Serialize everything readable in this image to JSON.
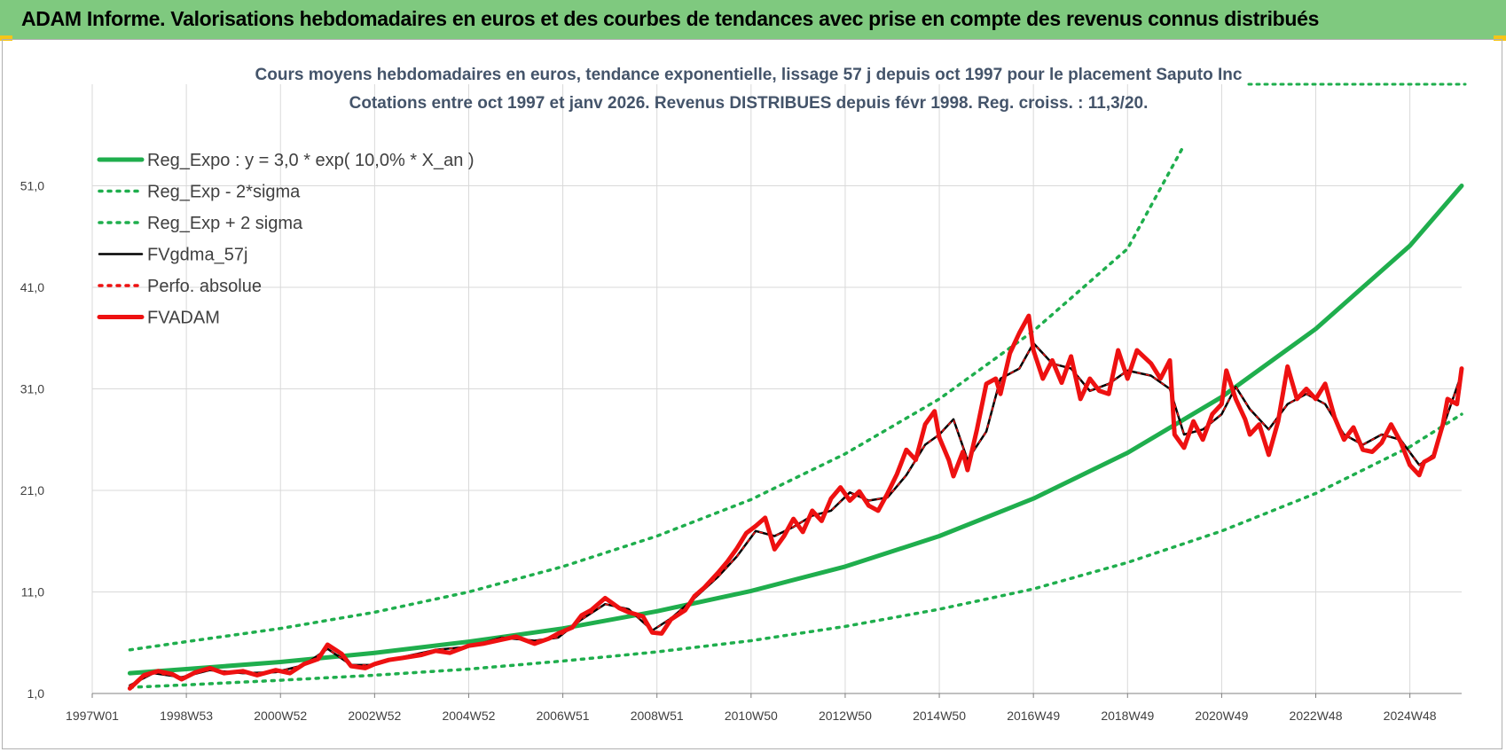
{
  "header": {
    "title": "ADAM Informe. Valorisations hebdomadaires en euros et des courbes de tendances avec prise en compte des revenus connus distribués"
  },
  "colors": {
    "header_bg": "#7fc97f",
    "green": "#1fae4d",
    "red": "#ee1111",
    "black": "#000000",
    "grid": "#d9d9d9"
  },
  "chart_data": {
    "type": "line",
    "title": "Cours moyens hebdomadaires en euros, tendance exponentielle, lissage 57 j depuis oct 1997 pour le placement Saputo Inc",
    "subtitle": "Cotations entre oct 1997 et janv 2026. Revenus DISTRIBUES depuis févr 1998. Reg. croiss. : 11,3/20.",
    "xlabel": "",
    "ylabel": "",
    "ylim": [
      1,
      61
    ],
    "xlim": [
      1997.0,
      2026.1
    ],
    "grid": true,
    "legend_position": "top-left",
    "y_ticks": [
      {
        "value": 1,
        "label": "1,0"
      },
      {
        "value": 11,
        "label": "11,0"
      },
      {
        "value": 21,
        "label": "21,0"
      },
      {
        "value": 31,
        "label": "31,0"
      },
      {
        "value": 41,
        "label": "41,0"
      },
      {
        "value": 51,
        "label": "51,0"
      }
    ],
    "x_ticks": [
      {
        "value": 1997.0,
        "label": "1997W01"
      },
      {
        "value": 1999.0,
        "label": "1998W53"
      },
      {
        "value": 2001.0,
        "label": "2000W52"
      },
      {
        "value": 2003.0,
        "label": "2002W52"
      },
      {
        "value": 2005.0,
        "label": "2004W52"
      },
      {
        "value": 2007.0,
        "label": "2006W51"
      },
      {
        "value": 2009.0,
        "label": "2008W51"
      },
      {
        "value": 2011.0,
        "label": "2010W50"
      },
      {
        "value": 2013.0,
        "label": "2012W50"
      },
      {
        "value": 2015.0,
        "label": "2014W50"
      },
      {
        "value": 2017.0,
        "label": "2016W49"
      },
      {
        "value": 2019.0,
        "label": "2018W49"
      },
      {
        "value": 2021.0,
        "label": "2020W49"
      },
      {
        "value": 2023.0,
        "label": "2022W48"
      },
      {
        "value": 2025.0,
        "label": "2024W48"
      }
    ],
    "series": [
      {
        "name": "Reg_Expo : y = 3,0 * exp( 10,0% *  X_an )",
        "style": "solid-thick",
        "color": "#1fae4d",
        "x": [
          1997.8,
          1999.0,
          2001.0,
          2003.0,
          2005.0,
          2007.0,
          2009.0,
          2011.0,
          2013.0,
          2015.0,
          2017.0,
          2019.0,
          2021.0,
          2023.0,
          2025.0,
          2026.1
        ],
        "values": [
          3.0,
          3.4,
          4.1,
          5.0,
          6.1,
          7.4,
          9.1,
          11.1,
          13.5,
          16.5,
          20.2,
          24.7,
          30.2,
          36.9,
          45.1,
          51.0
        ]
      },
      {
        "name": "Reg_Exp - 2*sigma",
        "style": "dotted",
        "color": "#1fae4d",
        "x": [
          1997.8,
          1999.0,
          2001.0,
          2003.0,
          2005.0,
          2007.0,
          2009.0,
          2011.0,
          2013.0,
          2015.0,
          2017.0,
          2019.0,
          2021.0,
          2023.0,
          2025.0,
          2026.1
        ],
        "values": [
          1.6,
          1.85,
          2.3,
          2.8,
          3.4,
          4.2,
          5.1,
          6.2,
          7.6,
          9.3,
          11.3,
          13.9,
          17.0,
          20.7,
          25.3,
          28.5
        ]
      },
      {
        "name": "Reg_Exp + 2 sigma",
        "style": "dotted",
        "color": "#1fae4d",
        "x": [
          1997.8,
          1999.0,
          2001.0,
          2003.0,
          2005.0,
          2007.0,
          2009.0,
          2011.0,
          2013.0,
          2015.0,
          2017.0,
          2019.0,
          2020.2
        ],
        "values": [
          5.3,
          6.1,
          7.4,
          9.0,
          11.0,
          13.5,
          16.5,
          20.1,
          24.6,
          30.0,
          36.7,
          44.8,
          55.0
        ]
      },
      {
        "name": "FVgdma_57j",
        "style": "solid",
        "color": "#000000",
        "x": [
          1997.8,
          1998.3,
          1998.9,
          1999.5,
          2000.2,
          2000.9,
          2001.5,
          2002.0,
          2002.5,
          2003.0,
          2003.6,
          2004.3,
          2005.0,
          2005.7,
          2006.4,
          2006.9,
          2007.4,
          2007.9,
          2008.4,
          2008.9,
          2009.3,
          2009.8,
          2010.3,
          2010.7,
          2011.1,
          2011.5,
          2011.9,
          2012.3,
          2012.7,
          2013.1,
          2013.5,
          2013.9,
          2014.3,
          2014.7,
          2015.0,
          2015.3,
          2015.6,
          2016.0,
          2016.3,
          2016.7,
          2017.0,
          2017.4,
          2017.8,
          2018.2,
          2018.6,
          2019.0,
          2019.5,
          2019.9,
          2020.2,
          2020.6,
          2021.0,
          2021.3,
          2021.6,
          2022.0,
          2022.4,
          2022.8,
          2023.2,
          2023.6,
          2024.0,
          2024.4,
          2024.8,
          2025.2,
          2025.5,
          2025.8,
          2026.1
        ],
        "values": [
          1.8,
          3.0,
          2.6,
          3.3,
          3.0,
          3.1,
          3.8,
          5.4,
          3.8,
          3.8,
          4.6,
          5.3,
          5.6,
          6.5,
          6.2,
          6.5,
          8.3,
          9.8,
          9.3,
          7.2,
          8.4,
          10.4,
          12.5,
          14.5,
          17.0,
          16.5,
          17.4,
          18.5,
          19.0,
          20.8,
          20.0,
          20.3,
          22.5,
          25.5,
          26.5,
          28.0,
          24.0,
          26.8,
          32.0,
          33.0,
          35.5,
          33.5,
          33.0,
          30.8,
          31.5,
          32.8,
          32.3,
          31.0,
          26.5,
          27.0,
          28.5,
          31.2,
          29.0,
          27.0,
          29.5,
          30.5,
          29.5,
          26.5,
          25.5,
          26.5,
          26.0,
          23.5,
          24.5,
          28.5,
          32.5
        ]
      },
      {
        "name": "Perfo. absolue",
        "style": "dotted",
        "color": "#ee1111",
        "x": [
          1997.8,
          1998.3,
          1998.9,
          1999.5,
          2000.2,
          2000.9,
          2001.5,
          2002.0,
          2002.5,
          2003.0,
          2003.6,
          2004.3,
          2005.0,
          2005.7,
          2006.4,
          2006.9,
          2007.4,
          2007.9,
          2008.4,
          2008.9,
          2009.3,
          2009.8,
          2010.3,
          2010.7,
          2011.1,
          2011.5,
          2011.9,
          2012.3,
          2012.7,
          2013.1,
          2013.5,
          2013.9,
          2014.3,
          2014.7,
          2015.0,
          2015.3,
          2015.6,
          2016.0,
          2016.3,
          2016.7,
          2017.0,
          2017.4,
          2017.8,
          2018.2,
          2018.6,
          2019.0,
          2019.5,
          2019.9,
          2020.2,
          2020.6,
          2021.0,
          2021.3,
          2021.6,
          2022.0,
          2022.4,
          2022.8,
          2023.2,
          2023.6,
          2024.0,
          2024.4,
          2024.8,
          2025.2,
          2025.5,
          2025.8,
          2026.1
        ],
        "values": [
          1.8,
          3.0,
          2.6,
          3.3,
          3.0,
          3.1,
          3.8,
          5.4,
          3.8,
          3.8,
          4.6,
          5.3,
          5.6,
          6.5,
          6.2,
          6.5,
          8.3,
          9.8,
          9.3,
          7.2,
          8.4,
          10.4,
          12.5,
          14.5,
          17.0,
          16.5,
          17.4,
          18.5,
          19.0,
          20.8,
          20.0,
          20.3,
          22.5,
          25.5,
          26.5,
          28.0,
          24.0,
          26.8,
          32.0,
          33.0,
          35.5,
          33.5,
          33.0,
          30.8,
          31.5,
          32.8,
          32.3,
          31.0,
          26.5,
          27.0,
          28.5,
          31.2,
          29.0,
          27.0,
          29.5,
          30.5,
          29.5,
          26.5,
          25.5,
          26.5,
          26.0,
          23.5,
          24.5,
          28.5,
          32.5
        ]
      },
      {
        "name": "FVADAM",
        "style": "solid-thick",
        "color": "#ee1111",
        "x": [
          1997.8,
          1998.1,
          1998.4,
          1998.7,
          1998.9,
          1999.2,
          1999.5,
          1999.8,
          2000.2,
          2000.5,
          2000.9,
          2001.2,
          2001.5,
          2001.8,
          2002.0,
          2002.3,
          2002.5,
          2002.8,
          2003.0,
          2003.3,
          2003.6,
          2004.0,
          2004.3,
          2004.6,
          2005.0,
          2005.3,
          2005.7,
          2006.0,
          2006.4,
          2006.7,
          2006.9,
          2007.2,
          2007.4,
          2007.6,
          2007.9,
          2008.2,
          2008.4,
          2008.7,
          2008.9,
          2009.1,
          2009.3,
          2009.6,
          2009.8,
          2010.0,
          2010.3,
          2010.5,
          2010.7,
          2010.9,
          2011.1,
          2011.3,
          2011.5,
          2011.7,
          2011.9,
          2012.1,
          2012.3,
          2012.5,
          2012.7,
          2012.9,
          2013.1,
          2013.3,
          2013.5,
          2013.7,
          2013.9,
          2014.1,
          2014.3,
          2014.5,
          2014.7,
          2014.9,
          2015.0,
          2015.2,
          2015.3,
          2015.5,
          2015.6,
          2015.8,
          2016.0,
          2016.2,
          2016.3,
          2016.5,
          2016.7,
          2016.9,
          2017.0,
          2017.2,
          2017.4,
          2017.6,
          2017.8,
          2018.0,
          2018.2,
          2018.4,
          2018.6,
          2018.8,
          2019.0,
          2019.2,
          2019.5,
          2019.7,
          2019.9,
          2020.0,
          2020.2,
          2020.4,
          2020.6,
          2020.8,
          2021.0,
          2021.1,
          2021.3,
          2021.5,
          2021.6,
          2021.8,
          2022.0,
          2022.2,
          2022.4,
          2022.6,
          2022.8,
          2023.0,
          2023.2,
          2023.4,
          2023.6,
          2023.8,
          2024.0,
          2024.2,
          2024.4,
          2024.6,
          2024.8,
          2025.0,
          2025.2,
          2025.3,
          2025.5,
          2025.7,
          2025.8,
          2026.0,
          2026.1
        ],
        "values": [
          1.5,
          2.8,
          3.2,
          2.9,
          2.4,
          3.1,
          3.5,
          3.0,
          3.2,
          2.8,
          3.3,
          3.0,
          3.9,
          4.4,
          5.8,
          4.9,
          3.7,
          3.5,
          3.9,
          4.3,
          4.5,
          4.8,
          5.2,
          5.0,
          5.7,
          5.9,
          6.3,
          6.6,
          5.9,
          6.4,
          6.9,
          7.5,
          8.7,
          9.2,
          10.4,
          9.4,
          9.0,
          8.6,
          7.0,
          6.9,
          8.3,
          9.2,
          10.6,
          11.4,
          12.9,
          14.0,
          15.3,
          16.8,
          17.5,
          18.3,
          15.2,
          16.5,
          18.2,
          16.9,
          19.0,
          18.0,
          20.2,
          21.3,
          20.0,
          20.9,
          19.5,
          19.0,
          20.7,
          22.6,
          25.0,
          24.0,
          27.5,
          28.8,
          26.2,
          24.0,
          22.4,
          24.8,
          23.0,
          27.0,
          31.5,
          32.0,
          30.5,
          34.5,
          36.5,
          38.2,
          34.8,
          32.0,
          33.8,
          31.6,
          34.2,
          30.0,
          32.0,
          30.8,
          30.5,
          34.8,
          32.0,
          34.8,
          33.5,
          32.0,
          33.8,
          26.5,
          25.2,
          27.8,
          26.0,
          28.5,
          29.5,
          32.8,
          30.0,
          28.0,
          26.5,
          27.5,
          24.5,
          27.8,
          33.2,
          30.0,
          31.0,
          30.0,
          31.5,
          28.2,
          26.0,
          27.2,
          25.0,
          24.8,
          25.7,
          27.5,
          25.8,
          23.5,
          22.5,
          23.8,
          24.3,
          27.5,
          30.0,
          29.5,
          33.0
        ]
      }
    ]
  }
}
